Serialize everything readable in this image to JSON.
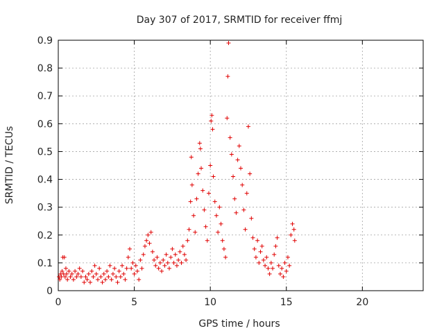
{
  "chart_data": {
    "type": "scatter",
    "title": "Day 307 of 2017, SRMTID for receiver ffmj",
    "xlabel": "GPS time / hours",
    "ylabel": "SRMTID / TECUs",
    "xlim": [
      0,
      24
    ],
    "ylim": [
      0,
      0.9
    ],
    "xticks": [
      0,
      5,
      10,
      15,
      20
    ],
    "yticks": [
      0,
      0.1,
      0.2,
      0.3,
      0.4,
      0.5,
      0.6,
      0.7,
      0.8,
      0.9
    ],
    "grid": true,
    "marker": "plus",
    "color": "#e00000",
    "series": [
      {
        "name": "ffmj",
        "points": [
          [
            0.05,
            0.05
          ],
          [
            0.1,
            0.04
          ],
          [
            0.15,
            0.06
          ],
          [
            0.2,
            0.05
          ],
          [
            0.25,
            0.07
          ],
          [
            0.3,
            0.12
          ],
          [
            0.35,
            0.06
          ],
          [
            0.4,
            0.12
          ],
          [
            0.45,
            0.05
          ],
          [
            0.5,
            0.08
          ],
          [
            0.55,
            0.06
          ],
          [
            0.6,
            0.04
          ],
          [
            0.7,
            0.07
          ],
          [
            0.8,
            0.05
          ],
          [
            0.9,
            0.06
          ],
          [
            1.0,
            0.04
          ],
          [
            1.1,
            0.07
          ],
          [
            1.2,
            0.05
          ],
          [
            1.3,
            0.06
          ],
          [
            1.4,
            0.08
          ],
          [
            1.5,
            0.05
          ],
          [
            1.6,
            0.07
          ],
          [
            1.7,
            0.03
          ],
          [
            1.8,
            0.05
          ],
          [
            1.9,
            0.04
          ],
          [
            2.0,
            0.06
          ],
          [
            2.1,
            0.03
          ],
          [
            2.2,
            0.07
          ],
          [
            2.3,
            0.05
          ],
          [
            2.4,
            0.09
          ],
          [
            2.5,
            0.06
          ],
          [
            2.6,
            0.04
          ],
          [
            2.7,
            0.08
          ],
          [
            2.8,
            0.05
          ],
          [
            2.9,
            0.03
          ],
          [
            3.0,
            0.06
          ],
          [
            3.1,
            0.04
          ],
          [
            3.2,
            0.07
          ],
          [
            3.3,
            0.05
          ],
          [
            3.4,
            0.09
          ],
          [
            3.5,
            0.04
          ],
          [
            3.6,
            0.06
          ],
          [
            3.7,
            0.08
          ],
          [
            3.8,
            0.05
          ],
          [
            3.9,
            0.03
          ],
          [
            4.0,
            0.07
          ],
          [
            4.1,
            0.05
          ],
          [
            4.2,
            0.09
          ],
          [
            4.3,
            0.06
          ],
          [
            4.4,
            0.04
          ],
          [
            4.5,
            0.08
          ],
          [
            4.6,
            0.12
          ],
          [
            4.7,
            0.15
          ],
          [
            4.8,
            0.08
          ],
          [
            4.9,
            0.1
          ],
          [
            5.0,
            0.06
          ],
          [
            5.1,
            0.09
          ],
          [
            5.2,
            0.07
          ],
          [
            5.3,
            0.04
          ],
          [
            5.4,
            0.11
          ],
          [
            5.5,
            0.08
          ],
          [
            5.6,
            0.13
          ],
          [
            5.7,
            0.16
          ],
          [
            5.8,
            0.18
          ],
          [
            5.9,
            0.2
          ],
          [
            6.0,
            0.17
          ],
          [
            6.1,
            0.21
          ],
          [
            6.2,
            0.14
          ],
          [
            6.3,
            0.11
          ],
          [
            6.4,
            0.09
          ],
          [
            6.5,
            0.12
          ],
          [
            6.6,
            0.08
          ],
          [
            6.7,
            0.1
          ],
          [
            6.8,
            0.07
          ],
          [
            6.9,
            0.11
          ],
          [
            7.0,
            0.09
          ],
          [
            7.1,
            0.13
          ],
          [
            7.2,
            0.1
          ],
          [
            7.3,
            0.08
          ],
          [
            7.4,
            0.12
          ],
          [
            7.5,
            0.15
          ],
          [
            7.6,
            0.1
          ],
          [
            7.7,
            0.13
          ],
          [
            7.8,
            0.09
          ],
          [
            7.9,
            0.11
          ],
          [
            8.0,
            0.14
          ],
          [
            8.1,
            0.1
          ],
          [
            8.2,
            0.16
          ],
          [
            8.3,
            0.13
          ],
          [
            8.4,
            0.11
          ],
          [
            8.5,
            0.18
          ],
          [
            8.6,
            0.22
          ],
          [
            8.7,
            0.32
          ],
          [
            8.75,
            0.48
          ],
          [
            8.8,
            0.38
          ],
          [
            8.9,
            0.27
          ],
          [
            9.0,
            0.21
          ],
          [
            9.1,
            0.33
          ],
          [
            9.2,
            0.42
          ],
          [
            9.3,
            0.53
          ],
          [
            9.35,
            0.51
          ],
          [
            9.4,
            0.44
          ],
          [
            9.5,
            0.36
          ],
          [
            9.6,
            0.29
          ],
          [
            9.7,
            0.23
          ],
          [
            9.8,
            0.18
          ],
          [
            9.9,
            0.35
          ],
          [
            10.0,
            0.45
          ],
          [
            10.05,
            0.61
          ],
          [
            10.1,
            0.63
          ],
          [
            10.15,
            0.58
          ],
          [
            10.2,
            0.41
          ],
          [
            10.3,
            0.32
          ],
          [
            10.4,
            0.27
          ],
          [
            10.5,
            0.21
          ],
          [
            10.6,
            0.3
          ],
          [
            10.7,
            0.24
          ],
          [
            10.8,
            0.18
          ],
          [
            10.9,
            0.15
          ],
          [
            11.0,
            0.12
          ],
          [
            11.1,
            0.62
          ],
          [
            11.15,
            0.77
          ],
          [
            11.2,
            0.89
          ],
          [
            11.3,
            0.55
          ],
          [
            11.4,
            0.49
          ],
          [
            11.5,
            0.41
          ],
          [
            11.6,
            0.33
          ],
          [
            11.7,
            0.28
          ],
          [
            11.8,
            0.47
          ],
          [
            11.9,
            0.52
          ],
          [
            12.0,
            0.44
          ],
          [
            12.1,
            0.38
          ],
          [
            12.2,
            0.29
          ],
          [
            12.3,
            0.22
          ],
          [
            12.4,
            0.35
          ],
          [
            12.5,
            0.59
          ],
          [
            12.6,
            0.42
          ],
          [
            12.7,
            0.26
          ],
          [
            12.8,
            0.19
          ],
          [
            12.9,
            0.15
          ],
          [
            13.0,
            0.12
          ],
          [
            13.1,
            0.18
          ],
          [
            13.2,
            0.1
          ],
          [
            13.3,
            0.14
          ],
          [
            13.4,
            0.16
          ],
          [
            13.5,
            0.11
          ],
          [
            13.6,
            0.09
          ],
          [
            13.7,
            0.12
          ],
          [
            13.8,
            0.08
          ],
          [
            13.9,
            0.06
          ],
          [
            14.0,
            0.1
          ],
          [
            14.1,
            0.08
          ],
          [
            14.2,
            0.13
          ],
          [
            14.3,
            0.16
          ],
          [
            14.4,
            0.19
          ],
          [
            14.5,
            0.09
          ],
          [
            14.6,
            0.06
          ],
          [
            14.7,
            0.08
          ],
          [
            14.8,
            0.05
          ],
          [
            14.9,
            0.1
          ],
          [
            15.0,
            0.07
          ],
          [
            15.1,
            0.12
          ],
          [
            15.2,
            0.09
          ],
          [
            15.3,
            0.2
          ],
          [
            15.4,
            0.24
          ],
          [
            15.5,
            0.22
          ],
          [
            15.55,
            0.18
          ]
        ]
      }
    ]
  }
}
